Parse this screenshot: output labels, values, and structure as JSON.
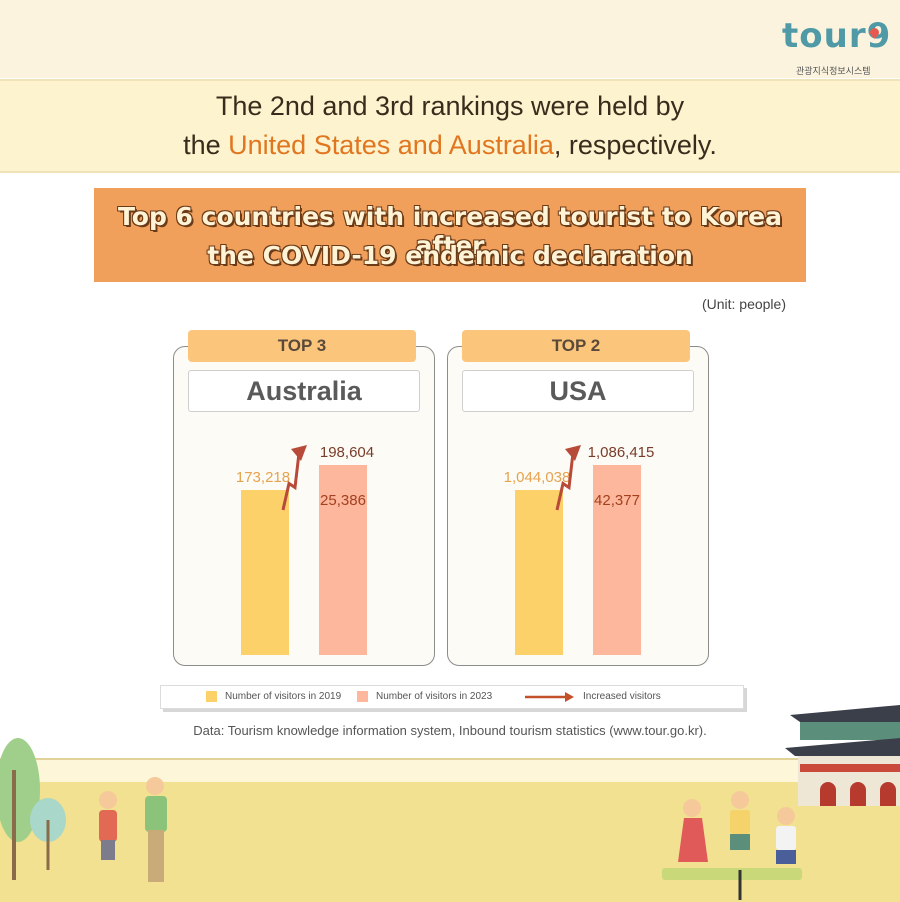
{
  "header": {
    "logo_text": "tour9",
    "logo_sub": "관광지식정보시스템"
  },
  "headline": {
    "line1": "The 2nd and 3rd rankings were held by",
    "line2_prefix": "the ",
    "line2_highlight": "United States and Australia",
    "line2_suffix": ", respectively."
  },
  "chart_data": {
    "type": "bar",
    "title": "Top 6 countries with increased tourist to Korea after the COVID-19 endemic declaration",
    "title_line1": "Top 6 countries with increased tourist to Korea after",
    "title_line2": "the COVID-19 endemic declaration",
    "unit": "(Unit: people)",
    "series_names": [
      "Number of visitors in 2019",
      "Number of visitors in 2023"
    ],
    "arrow_legend": "Increased visitors",
    "colors": {
      "2019": "#fdd169",
      "2023": "#fdb79c",
      "arrow": "#b84a3a"
    },
    "panels": [
      {
        "rank": "TOP 3",
        "country": "Australia",
        "values": [
          173218,
          198604
        ],
        "labels": [
          "173,218",
          "198,604"
        ],
        "increase": 25386,
        "increase_label": "25,386"
      },
      {
        "rank": "TOP 2",
        "country": "USA",
        "values": [
          1044038,
          1086415
        ],
        "labels": [
          "1,044,038",
          "1,086,415"
        ],
        "increase": 42377,
        "increase_label": "42,377"
      }
    ]
  },
  "source": "Data: Tourism knowledge information system, Inbound tourism statistics (www.tour.go.kr)."
}
